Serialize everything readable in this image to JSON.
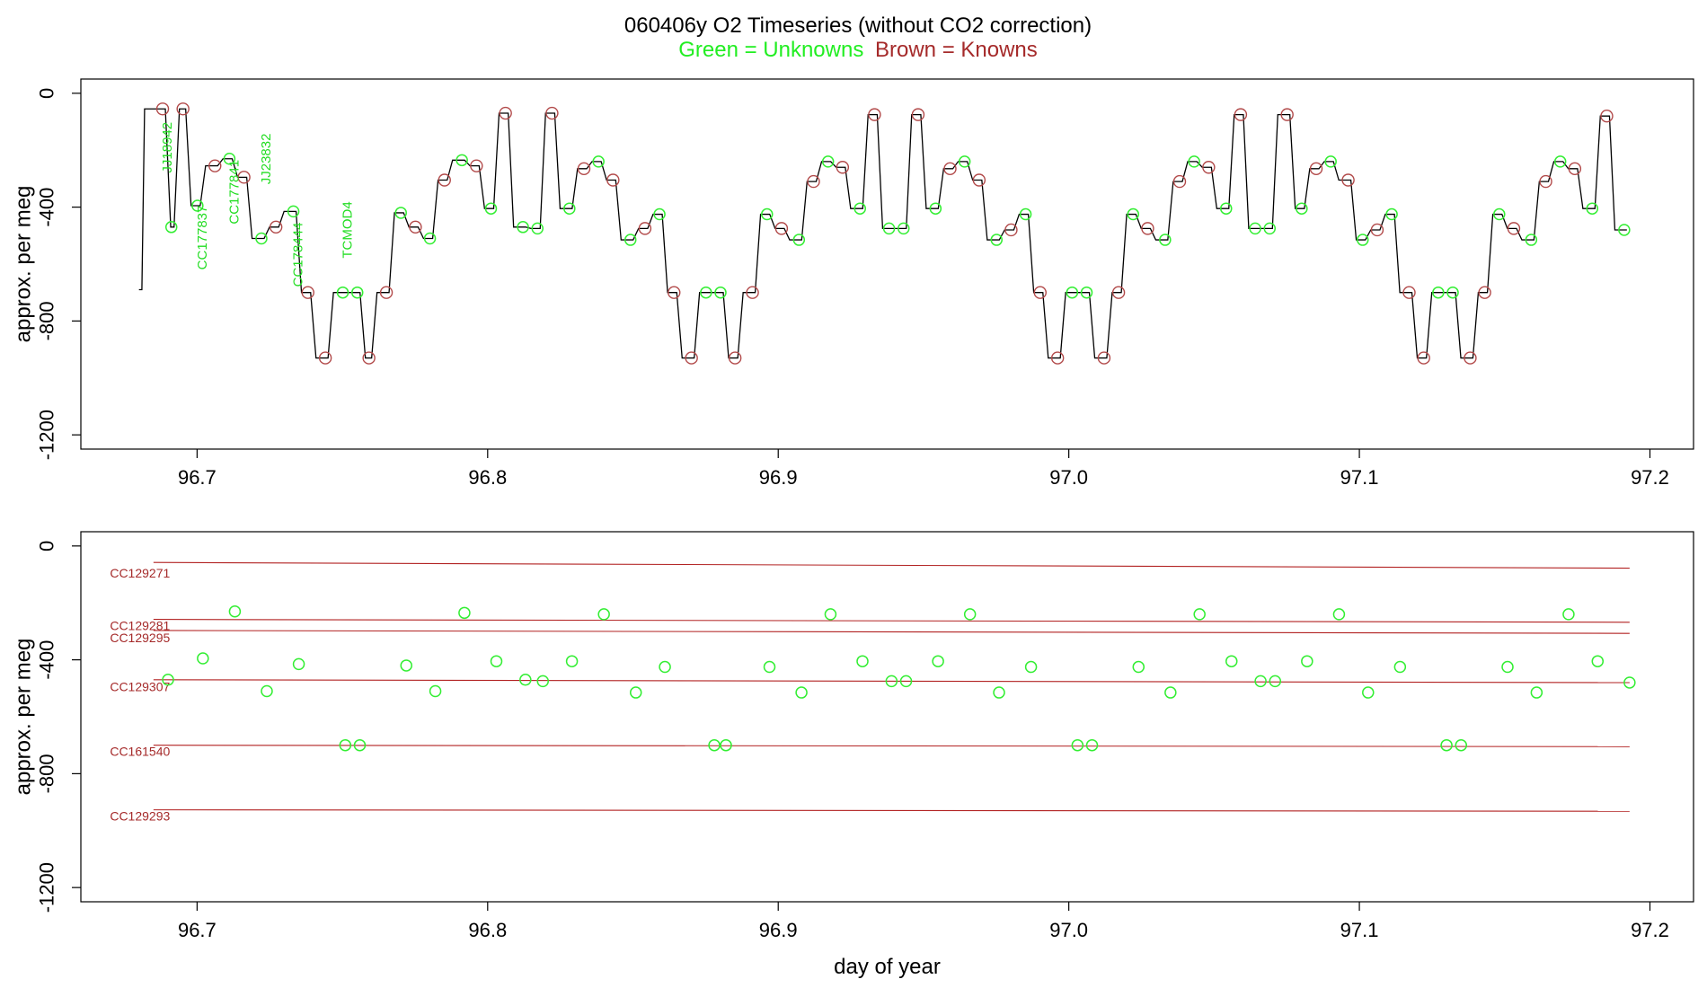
{
  "header": {
    "title": "060406y    O2 Timeseries (without CO2 correction)",
    "legend_unknowns": "Green = Unknowns",
    "legend_knowns": "Brown = Knowns"
  },
  "colors": {
    "unknowns": "#22ee22",
    "knowns": "#a52a2a",
    "trace": "#000000"
  },
  "chart_data": [
    {
      "type": "line",
      "id": "top",
      "ylabel": "approx. per meg",
      "xlabel": "",
      "xlim": [
        96.66,
        97.215
      ],
      "ylim": [
        -1250,
        50
      ],
      "xticks": [
        96.7,
        96.8,
        96.9,
        97.0,
        97.1,
        97.2
      ],
      "xtick_labels": [
        "96.7",
        "96.8",
        "96.9",
        "97.0",
        "97.1",
        "97.2"
      ],
      "yticks": [
        0,
        -400,
        -800,
        -1200
      ],
      "ytick_labels": [
        "0",
        "-400",
        "-800",
        "-1200"
      ],
      "trace_start": [
        96.68,
        -690
      ],
      "segments": [
        [
          96.681,
          96.69,
          -55,
          "k"
        ],
        [
          96.69,
          96.693,
          -470,
          "u"
        ],
        [
          96.693,
          96.697,
          -55,
          "k"
        ],
        [
          96.697,
          96.702,
          -395,
          "u"
        ],
        [
          96.702,
          96.708,
          -255,
          "k"
        ],
        [
          96.708,
          96.713,
          -230,
          "u"
        ],
        [
          96.713,
          96.718,
          -295,
          "k"
        ],
        [
          96.718,
          96.724,
          -510,
          "u"
        ],
        [
          96.724,
          96.729,
          -470,
          "k"
        ],
        [
          96.729,
          96.735,
          -415,
          "u"
        ],
        [
          96.735,
          96.74,
          -700,
          "k"
        ],
        [
          96.74,
          96.746,
          -930,
          "k"
        ],
        [
          96.746,
          96.752,
          -700,
          "u"
        ],
        [
          96.752,
          96.757,
          -700,
          "u"
        ],
        [
          96.757,
          96.761,
          -930,
          "k"
        ],
        [
          96.761,
          96.767,
          -700,
          "k"
        ],
        [
          96.767,
          96.772,
          -420,
          "u"
        ],
        [
          96.772,
          96.777,
          -470,
          "k"
        ],
        [
          96.777,
          96.782,
          -510,
          "u"
        ],
        [
          96.782,
          96.787,
          -305,
          "k"
        ],
        [
          96.787,
          96.793,
          -235,
          "u"
        ],
        [
          96.793,
          96.798,
          -255,
          "k"
        ],
        [
          96.798,
          96.803,
          -405,
          "u"
        ],
        [
          96.803,
          96.808,
          -70,
          "k"
        ],
        [
          96.808,
          96.814,
          -470,
          "u"
        ],
        [
          96.814,
          96.819,
          -475,
          "u"
        ],
        [
          96.819,
          96.824,
          -70,
          "k"
        ],
        [
          96.824,
          96.83,
          -405,
          "u"
        ],
        [
          96.83,
          96.835,
          -265,
          "k"
        ],
        [
          96.835,
          96.84,
          -240,
          "u"
        ],
        [
          96.84,
          96.845,
          -305,
          "k"
        ],
        [
          96.845,
          96.851,
          -515,
          "u"
        ],
        [
          96.851,
          96.856,
          -475,
          "k"
        ],
        [
          96.856,
          96.861,
          -425,
          "u"
        ],
        [
          96.861,
          96.866,
          -700,
          "k"
        ],
        [
          96.866,
          96.872,
          -930,
          "k"
        ],
        [
          96.872,
          96.877,
          -700,
          "u"
        ],
        [
          96.877,
          96.882,
          -700,
          "u"
        ],
        [
          96.882,
          96.887,
          -930,
          "k"
        ],
        [
          96.887,
          96.893,
          -700,
          "k"
        ],
        [
          96.893,
          96.898,
          -425,
          "u"
        ],
        [
          96.898,
          96.903,
          -475,
          "k"
        ],
        [
          96.903,
          96.909,
          -515,
          "u"
        ],
        [
          96.909,
          96.914,
          -310,
          "k"
        ],
        [
          96.914,
          96.919,
          -240,
          "u"
        ],
        [
          96.919,
          96.924,
          -260,
          "k"
        ],
        [
          96.924,
          96.93,
          -405,
          "u"
        ],
        [
          96.93,
          96.935,
          -75,
          "k"
        ],
        [
          96.935,
          96.94,
          -475,
          "u"
        ],
        [
          96.94,
          96.945,
          -475,
          "u"
        ],
        [
          96.945,
          96.95,
          -75,
          "k"
        ],
        [
          96.95,
          96.956,
          -405,
          "u"
        ],
        [
          96.956,
          96.961,
          -265,
          "k"
        ],
        [
          96.961,
          96.966,
          -240,
          "u"
        ],
        [
          96.966,
          96.971,
          -305,
          "k"
        ],
        [
          96.971,
          96.977,
          -515,
          "u"
        ],
        [
          96.977,
          96.982,
          -480,
          "k"
        ],
        [
          96.982,
          96.987,
          -425,
          "u"
        ],
        [
          96.987,
          96.992,
          -700,
          "k"
        ],
        [
          96.992,
          96.998,
          -930,
          "k"
        ],
        [
          96.998,
          97.003,
          -700,
          "u"
        ],
        [
          97.003,
          97.008,
          -700,
          "u"
        ],
        [
          97.008,
          97.014,
          -930,
          "k"
        ],
        [
          97.014,
          97.019,
          -700,
          "k"
        ],
        [
          97.019,
          97.024,
          -425,
          "u"
        ],
        [
          97.024,
          97.029,
          -475,
          "k"
        ],
        [
          97.029,
          97.035,
          -515,
          "u"
        ],
        [
          97.035,
          97.04,
          -310,
          "k"
        ],
        [
          97.04,
          97.045,
          -240,
          "u"
        ],
        [
          97.045,
          97.05,
          -260,
          "k"
        ],
        [
          97.05,
          97.056,
          -405,
          "u"
        ],
        [
          97.056,
          97.061,
          -75,
          "k"
        ],
        [
          97.061,
          97.066,
          -475,
          "u"
        ],
        [
          97.066,
          97.071,
          -475,
          "u"
        ],
        [
          97.071,
          97.077,
          -75,
          "k"
        ],
        [
          97.077,
          97.082,
          -405,
          "u"
        ],
        [
          97.082,
          97.087,
          -265,
          "k"
        ],
        [
          97.087,
          97.092,
          -240,
          "u"
        ],
        [
          97.092,
          97.098,
          -305,
          "k"
        ],
        [
          97.098,
          97.103,
          -515,
          "u"
        ],
        [
          97.103,
          97.108,
          -480,
          "k"
        ],
        [
          97.108,
          97.113,
          -425,
          "u"
        ],
        [
          97.113,
          97.119,
          -700,
          "k"
        ],
        [
          97.119,
          97.124,
          -930,
          "k"
        ],
        [
          97.124,
          97.129,
          -700,
          "u"
        ],
        [
          97.129,
          97.134,
          -700,
          "u"
        ],
        [
          97.134,
          97.14,
          -930,
          "k"
        ],
        [
          97.14,
          97.145,
          -700,
          "k"
        ],
        [
          97.145,
          97.15,
          -425,
          "u"
        ],
        [
          97.15,
          97.155,
          -475,
          "k"
        ],
        [
          97.155,
          97.161,
          -515,
          "u"
        ],
        [
          97.161,
          97.166,
          -310,
          "k"
        ],
        [
          97.166,
          97.171,
          -240,
          "u"
        ],
        [
          97.171,
          97.176,
          -265,
          "k"
        ],
        [
          97.176,
          97.182,
          -405,
          "u"
        ],
        [
          97.182,
          97.187,
          -80,
          "k"
        ],
        [
          97.187,
          97.193,
          -480,
          "u"
        ]
      ],
      "annotations": [
        {
          "text": "JJ18942",
          "x": 96.69,
          "y": -280
        },
        {
          "text": "CC177837",
          "x": 96.702,
          "y": -620
        },
        {
          "text": "CC177841",
          "x": 96.713,
          "y": -460
        },
        {
          "text": "JJ23832",
          "x": 96.724,
          "y": -320
        },
        {
          "text": "CC178444",
          "x": 96.735,
          "y": -680
        },
        {
          "text": "TCMOD4",
          "x": 96.752,
          "y": -580
        }
      ]
    },
    {
      "type": "scatter",
      "id": "bottom",
      "ylabel": "approx. per meg",
      "xlabel": "day of year",
      "xlim": [
        96.66,
        97.215
      ],
      "ylim": [
        -1250,
        50
      ],
      "xticks": [
        96.7,
        96.8,
        96.9,
        97.0,
        97.1,
        97.2
      ],
      "xtick_labels": [
        "96.7",
        "96.8",
        "96.9",
        "97.0",
        "97.1",
        "97.2"
      ],
      "yticks": [
        0,
        -400,
        -800,
        -1200
      ],
      "ytick_labels": [
        "0",
        "-400",
        "-800",
        "-1200"
      ],
      "known_lines": [
        {
          "label": "CC129271",
          "y_start": -58,
          "y_end": -78,
          "label_y": -95
        },
        {
          "label": "CC129281",
          "y_start": -258,
          "y_end": -268,
          "label_y": -280
        },
        {
          "label": "CC129295",
          "y_start": -297,
          "y_end": -307,
          "label_y": -322
        },
        {
          "label": "CC129307",
          "y_start": -470,
          "y_end": -480,
          "label_y": -495
        },
        {
          "label": "CC161540",
          "y_start": -700,
          "y_end": -705,
          "label_y": -722
        },
        {
          "label": "CC129293",
          "y_start": -927,
          "y_end": -932,
          "label_y": -948
        }
      ],
      "line_x_range": [
        96.685,
        97.193
      ],
      "label_x": 96.67,
      "unknowns": [
        [
          96.69,
          -470
        ],
        [
          96.702,
          -395
        ],
        [
          96.713,
          -230
        ],
        [
          96.724,
          -510
        ],
        [
          96.735,
          -415
        ],
        [
          96.751,
          -700
        ],
        [
          96.756,
          -700
        ],
        [
          96.772,
          -420
        ],
        [
          96.782,
          -510
        ],
        [
          96.792,
          -235
        ],
        [
          96.803,
          -405
        ],
        [
          96.813,
          -470
        ],
        [
          96.819,
          -475
        ],
        [
          96.829,
          -405
        ],
        [
          96.84,
          -240
        ],
        [
          96.851,
          -515
        ],
        [
          96.861,
          -425
        ],
        [
          96.878,
          -700
        ],
        [
          96.882,
          -700
        ],
        [
          96.897,
          -425
        ],
        [
          96.908,
          -515
        ],
        [
          96.918,
          -240
        ],
        [
          96.929,
          -405
        ],
        [
          96.939,
          -475
        ],
        [
          96.944,
          -475
        ],
        [
          96.955,
          -405
        ],
        [
          96.966,
          -240
        ],
        [
          96.976,
          -515
        ],
        [
          96.987,
          -425
        ],
        [
          97.003,
          -700
        ],
        [
          97.008,
          -700
        ],
        [
          97.024,
          -425
        ],
        [
          97.035,
          -515
        ],
        [
          97.045,
          -240
        ],
        [
          97.056,
          -405
        ],
        [
          97.066,
          -475
        ],
        [
          97.071,
          -475
        ],
        [
          97.082,
          -405
        ],
        [
          97.093,
          -240
        ],
        [
          97.103,
          -515
        ],
        [
          97.114,
          -425
        ],
        [
          97.13,
          -700
        ],
        [
          97.135,
          -700
        ],
        [
          97.151,
          -425
        ],
        [
          97.161,
          -515
        ],
        [
          97.172,
          -240
        ],
        [
          97.182,
          -405
        ],
        [
          97.193,
          -480
        ]
      ]
    }
  ]
}
